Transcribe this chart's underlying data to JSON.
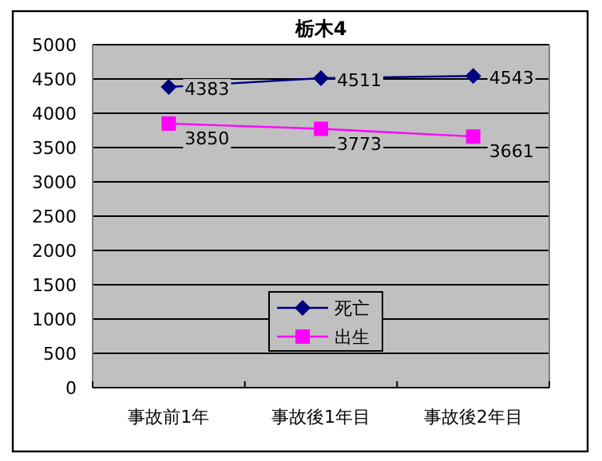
{
  "chart_data": {
    "type": "line",
    "title": "栃木4",
    "categories": [
      "事故前1年",
      "事故後1年目",
      "事故後2年目"
    ],
    "series": [
      {
        "name": "死亡",
        "color": "#000080",
        "marker": "diamond",
        "values": [
          4383,
          4511,
          4543
        ]
      },
      {
        "name": "出生",
        "color": "#ff00ff",
        "marker": "square",
        "values": [
          3850,
          3773,
          3661
        ]
      }
    ],
    "ylim": [
      0,
      5000
    ],
    "yticks": [
      0,
      500,
      1000,
      1500,
      2000,
      2500,
      3000,
      3500,
      4000,
      4500,
      5000
    ],
    "grid": "y",
    "legend": "bottom",
    "data_labels": true
  }
}
